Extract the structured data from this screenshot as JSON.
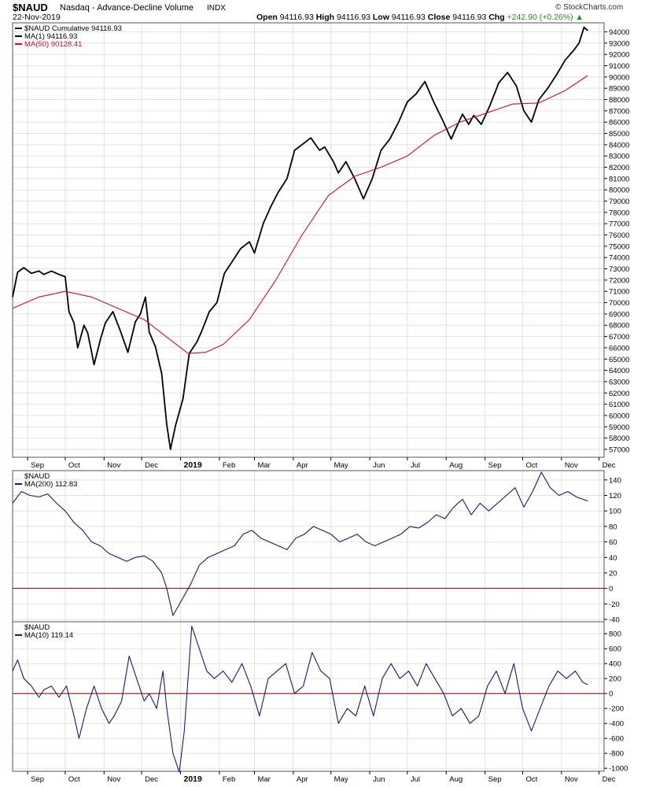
{
  "header": {
    "symbol": "$NAUD",
    "title": "Nasdaq - Advance-Decline Volume",
    "exchange": "INDX",
    "date": "22-Nov-2019",
    "ohlc_labels": [
      "Open",
      "High",
      "Low",
      "Close",
      "Chg"
    ],
    "ohlc_values": [
      "94116.93",
      "94116.93",
      "94116.93",
      "94116.93",
      "+242.90 (+0.26%)"
    ],
    "brand": "© StockCharts.com",
    "change_color": "#228b22"
  },
  "x_axis": {
    "labels": [
      "Sep",
      "Oct",
      "Nov",
      "Dec",
      "2019",
      "Feb",
      "Mar",
      "Apr",
      "May",
      "Jun",
      "Jul",
      "Aug",
      "Sep",
      "Oct",
      "Nov",
      "Dec"
    ],
    "bold_label": "2019"
  },
  "chart_data": [
    {
      "type": "line",
      "panel": "main",
      "legend": [
        "$NAUD Cumulative 94116.93",
        "MA(1) 94116.93",
        "MA(50) 90128.41"
      ],
      "yticks": [
        57000,
        58000,
        59000,
        60000,
        61000,
        62000,
        63000,
        64000,
        65000,
        66000,
        67000,
        68000,
        69000,
        70000,
        71000,
        72000,
        73000,
        74000,
        75000,
        76000,
        77000,
        78000,
        79000,
        80000,
        81000,
        82000,
        83000,
        84000,
        85000,
        86000,
        87000,
        88000,
        89000,
        90000,
        91000,
        92000,
        93000,
        94000
      ],
      "ylim": [
        56300,
        94800
      ],
      "x_range": [
        "2018-08-20",
        "2019-12-05"
      ],
      "series": [
        {
          "name": "MA(1)",
          "color": "#000000",
          "x": [
            "2018-08-20",
            "2018-08-24",
            "2018-08-29",
            "2018-09-04",
            "2018-09-10",
            "2018-09-14",
            "2018-09-20",
            "2018-09-26",
            "2018-10-01",
            "2018-10-04",
            "2018-10-08",
            "2018-10-11",
            "2018-10-16",
            "2018-10-19",
            "2018-10-24",
            "2018-10-29",
            "2018-11-02",
            "2018-11-08",
            "2018-11-14",
            "2018-11-20",
            "2018-11-26",
            "2018-11-30",
            "2018-12-04",
            "2018-12-07",
            "2018-12-12",
            "2018-12-17",
            "2018-12-21",
            "2018-12-24",
            "2018-12-28",
            "2019-01-03",
            "2019-01-08",
            "2019-01-14",
            "2019-01-18",
            "2019-01-24",
            "2019-01-30",
            "2019-02-05",
            "2019-02-11",
            "2019-02-18",
            "2019-02-25",
            "2019-03-01",
            "2019-03-08",
            "2019-03-14",
            "2019-03-20",
            "2019-03-27",
            "2019-04-02",
            "2019-04-08",
            "2019-04-15",
            "2019-04-22",
            "2019-04-26",
            "2019-05-03",
            "2019-05-07",
            "2019-05-13",
            "2019-05-20",
            "2019-05-27",
            "2019-06-03",
            "2019-06-10",
            "2019-06-17",
            "2019-06-24",
            "2019-07-01",
            "2019-07-08",
            "2019-07-15",
            "2019-07-22",
            "2019-07-29",
            "2019-08-05",
            "2019-08-09",
            "2019-08-14",
            "2019-08-19",
            "2019-08-23",
            "2019-08-29",
            "2019-09-05",
            "2019-09-12",
            "2019-09-19",
            "2019-09-26",
            "2019-10-02",
            "2019-10-08",
            "2019-10-14",
            "2019-10-21",
            "2019-10-28",
            "2019-11-04",
            "2019-11-11",
            "2019-11-15",
            "2019-11-19",
            "2019-11-22"
          ],
          "values": [
            70500,
            72700,
            73100,
            72600,
            72800,
            72500,
            72800,
            72500,
            72300,
            69200,
            68200,
            66000,
            68000,
            67300,
            64500,
            66700,
            68200,
            69200,
            67500,
            65600,
            68300,
            69000,
            70500,
            67400,
            66100,
            63700,
            59200,
            57000,
            59100,
            61500,
            65500,
            66500,
            67500,
            69200,
            70000,
            72600,
            73600,
            74800,
            75400,
            74400,
            77000,
            78500,
            79800,
            81000,
            83500,
            84000,
            84600,
            83500,
            83800,
            82500,
            81500,
            82500,
            81000,
            79200,
            81000,
            83500,
            84500,
            86000,
            87800,
            88500,
            89600,
            87800,
            86200,
            84500,
            85500,
            86700,
            85800,
            86600,
            85800,
            87500,
            89500,
            90400,
            89200,
            87000,
            86000,
            88000,
            89000,
            90200,
            91500,
            92400,
            93000,
            94400,
            94117
          ]
        },
        {
          "name": "MA(50)",
          "color": "#c8102e",
          "x": [
            "2018-08-20",
            "2018-09-10",
            "2018-10-01",
            "2018-10-22",
            "2018-11-12",
            "2018-12-03",
            "2018-12-24",
            "2019-01-07",
            "2019-01-21",
            "2019-02-04",
            "2019-02-25",
            "2019-03-18",
            "2019-04-08",
            "2019-04-29",
            "2019-05-20",
            "2019-06-10",
            "2019-07-01",
            "2019-07-22",
            "2019-08-12",
            "2019-09-02",
            "2019-09-23",
            "2019-10-14",
            "2019-11-04",
            "2019-11-22"
          ],
          "values": [
            69500,
            70500,
            71000,
            70500,
            69500,
            68500,
            66700,
            65500,
            65600,
            66300,
            68500,
            72000,
            76000,
            79500,
            81200,
            82000,
            83000,
            84800,
            86000,
            86800,
            87600,
            87700,
            88800,
            90128
          ]
        }
      ]
    },
    {
      "type": "line",
      "panel": "ma200",
      "legend": [
        "$NAUD",
        "MA(200) 112.83"
      ],
      "yticks": [
        -40,
        -20,
        0,
        20,
        40,
        60,
        80,
        100,
        120,
        140
      ],
      "ylim": [
        -43,
        152
      ],
      "reference_line": 0,
      "series": [
        {
          "name": "MA(200)",
          "color": "#191970",
          "x": [
            "2018-08-20",
            "2018-08-27",
            "2018-09-03",
            "2018-09-10",
            "2018-09-17",
            "2018-09-24",
            "2018-10-01",
            "2018-10-08",
            "2018-10-15",
            "2018-10-22",
            "2018-10-29",
            "2018-11-05",
            "2018-11-12",
            "2018-11-19",
            "2018-11-26",
            "2018-12-03",
            "2018-12-10",
            "2018-12-17",
            "2018-12-21",
            "2018-12-26",
            "2019-01-02",
            "2019-01-09",
            "2019-01-16",
            "2019-01-23",
            "2019-01-30",
            "2019-02-06",
            "2019-02-13",
            "2019-02-20",
            "2019-02-27",
            "2019-03-06",
            "2019-03-13",
            "2019-03-20",
            "2019-03-27",
            "2019-04-03",
            "2019-04-10",
            "2019-04-17",
            "2019-04-24",
            "2019-05-01",
            "2019-05-08",
            "2019-05-15",
            "2019-05-22",
            "2019-05-29",
            "2019-06-05",
            "2019-06-12",
            "2019-06-19",
            "2019-06-26",
            "2019-07-03",
            "2019-07-10",
            "2019-07-17",
            "2019-07-24",
            "2019-07-31",
            "2019-08-07",
            "2019-08-14",
            "2019-08-21",
            "2019-08-28",
            "2019-09-04",
            "2019-09-11",
            "2019-09-18",
            "2019-09-25",
            "2019-10-02",
            "2019-10-09",
            "2019-10-16",
            "2019-10-23",
            "2019-10-30",
            "2019-11-06",
            "2019-11-13",
            "2019-11-22"
          ],
          "values": [
            110,
            125,
            120,
            118,
            122,
            110,
            100,
            85,
            75,
            60,
            55,
            45,
            40,
            35,
            40,
            42,
            35,
            20,
            0,
            -35,
            -15,
            5,
            30,
            40,
            45,
            50,
            55,
            70,
            75,
            65,
            60,
            55,
            50,
            65,
            70,
            80,
            75,
            70,
            60,
            65,
            70,
            60,
            55,
            60,
            65,
            70,
            80,
            78,
            85,
            95,
            90,
            105,
            115,
            95,
            110,
            100,
            110,
            120,
            130,
            105,
            125,
            150,
            130,
            120,
            125,
            118,
            112.83
          ]
        }
      ]
    },
    {
      "type": "line",
      "panel": "ma10",
      "legend": [
        "$NAUD",
        "MA(10) 119.14"
      ],
      "yticks": [
        -1000,
        -800,
        -600,
        -400,
        -200,
        0,
        200,
        400,
        600,
        800
      ],
      "ylim": [
        -1040,
        960
      ],
      "reference_line": 0,
      "series": [
        {
          "name": "MA(10)",
          "color": "#191970",
          "x": [
            "2018-08-20",
            "2018-08-24",
            "2018-08-29",
            "2018-09-04",
            "2018-09-10",
            "2018-09-14",
            "2018-09-20",
            "2018-09-26",
            "2018-10-02",
            "2018-10-08",
            "2018-10-12",
            "2018-10-18",
            "2018-10-24",
            "2018-10-30",
            "2018-11-05",
            "2018-11-09",
            "2018-11-15",
            "2018-11-21",
            "2018-11-27",
            "2018-12-03",
            "2018-12-07",
            "2018-12-13",
            "2018-12-18",
            "2018-12-21",
            "2018-12-26",
            "2018-12-31",
            "2019-01-04",
            "2019-01-10",
            "2019-01-16",
            "2019-01-22",
            "2019-01-28",
            "2019-02-04",
            "2019-02-11",
            "2019-02-19",
            "2019-02-26",
            "2019-03-05",
            "2019-03-12",
            "2019-03-19",
            "2019-03-26",
            "2019-04-02",
            "2019-04-09",
            "2019-04-16",
            "2019-04-23",
            "2019-04-30",
            "2019-05-07",
            "2019-05-14",
            "2019-05-21",
            "2019-05-28",
            "2019-06-04",
            "2019-06-11",
            "2019-06-18",
            "2019-06-25",
            "2019-07-02",
            "2019-07-09",
            "2019-07-16",
            "2019-07-23",
            "2019-07-30",
            "2019-08-06",
            "2019-08-13",
            "2019-08-20",
            "2019-08-27",
            "2019-09-03",
            "2019-09-10",
            "2019-09-17",
            "2019-09-24",
            "2019-10-01",
            "2019-10-08",
            "2019-10-15",
            "2019-10-22",
            "2019-10-29",
            "2019-11-05",
            "2019-11-12",
            "2019-11-18",
            "2019-11-22"
          ],
          "values": [
            300,
            450,
            200,
            100,
            -50,
            50,
            100,
            -50,
            100,
            -300,
            -600,
            -200,
            100,
            -200,
            -400,
            -300,
            -100,
            500,
            200,
            -100,
            0,
            -200,
            300,
            -200,
            -800,
            -1050,
            -500,
            900,
            600,
            300,
            200,
            300,
            150,
            400,
            100,
            -300,
            200,
            300,
            400,
            0,
            100,
            550,
            300,
            200,
            -400,
            -200,
            -300,
            100,
            -300,
            200,
            400,
            200,
            300,
            100,
            400,
            200,
            0,
            -300,
            -200,
            -400,
            -300,
            100,
            300,
            0,
            400,
            -200,
            -500,
            -200,
            100,
            300,
            200,
            300,
            150,
            119.14
          ]
        }
      ]
    }
  ]
}
